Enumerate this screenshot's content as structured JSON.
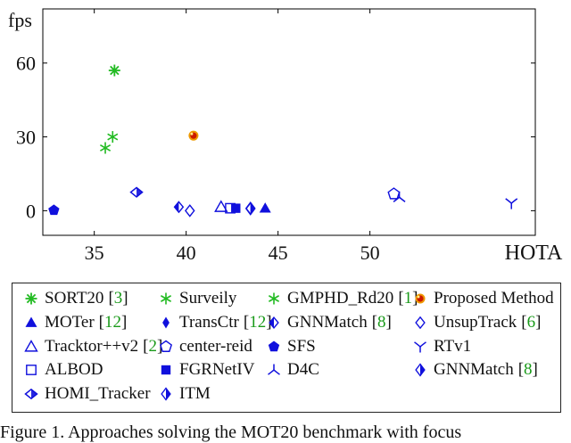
{
  "chart_data": {
    "type": "scatter",
    "title": "",
    "xlabel": "HOTA",
    "ylabel": "fps",
    "xlim": [
      32.2,
      59.0
    ],
    "ylim": [
      -10,
      82
    ],
    "xticks": [
      35,
      40,
      45,
      50
    ],
    "yticks": [
      0,
      30,
      60
    ],
    "series": [
      {
        "name": "SORT20",
        "cite": "3",
        "marker": "asterisk",
        "color": "#22bb22",
        "points": [
          [
            36.1,
            57
          ]
        ]
      },
      {
        "name": "Surveily",
        "cite": "",
        "marker": "star",
        "color": "#22bb22",
        "points": [
          [
            35.6,
            25.5
          ],
          [
            36.0,
            30.0
          ]
        ]
      },
      {
        "name": "GMPHD_Rd20",
        "cite": "1",
        "marker": "star",
        "color": "#22bb22",
        "points": []
      },
      {
        "name": "Proposed Method",
        "cite": "",
        "marker": "ball",
        "color": "#cc2200",
        "points": [
          [
            40.4,
            30.5
          ]
        ]
      },
      {
        "name": "MOTer",
        "cite": "12",
        "marker": "triangle",
        "color": "#1010dd",
        "points": [
          [
            44.3,
            1
          ]
        ]
      },
      {
        "name": "TransCtr",
        "cite": "12",
        "marker": "diamond",
        "color": "#1010dd",
        "points": []
      },
      {
        "name": "GNNMatch",
        "cite": "8",
        "marker": "diamond-open-half",
        "color": "#1010dd",
        "points": [
          [
            39.6,
            1.5
          ]
        ]
      },
      {
        "name": "UnsupTrack",
        "cite": "6",
        "marker": "diamond-open",
        "color": "#1010dd",
        "points": [
          [
            40.2,
            0
          ]
        ]
      },
      {
        "name": "Tracktor++v2",
        "cite": "2",
        "marker": "triangle-open",
        "color": "#1010dd",
        "points": [
          [
            41.9,
            1.5
          ]
        ]
      },
      {
        "name": "center-reid",
        "cite": "",
        "marker": "pentagon-open",
        "color": "#1010dd",
        "points": [
          [
            51.3,
            6.8
          ]
        ]
      },
      {
        "name": "SFS",
        "cite": "",
        "marker": "pentagon",
        "color": "#1010dd",
        "points": [
          [
            32.8,
            0.2
          ]
        ]
      },
      {
        "name": "RTv1",
        "cite": "",
        "marker": "tri-down",
        "color": "#1010dd",
        "points": [
          [
            57.7,
            3
          ]
        ]
      },
      {
        "name": "ALBOD",
        "cite": "",
        "marker": "square-open",
        "color": "#1010dd",
        "points": [
          [
            42.4,
            1
          ]
        ]
      },
      {
        "name": "FGRNetIV",
        "cite": "",
        "marker": "square",
        "color": "#1010dd",
        "points": [
          [
            42.7,
            1
          ]
        ]
      },
      {
        "name": "D4C",
        "cite": "",
        "marker": "tri-up",
        "color": "#1010dd",
        "points": [
          [
            51.6,
            5.5
          ]
        ]
      },
      {
        "name": "GNNMatch",
        "cite": "8",
        "marker": "diamond-half",
        "color": "#1010dd",
        "points": [
          [
            43.5,
            1
          ]
        ]
      },
      {
        "name": "HOMI_Tracker",
        "cite": "",
        "marker": "diamond-open-wide",
        "color": "#1010dd",
        "points": [
          [
            37.3,
            7.5
          ]
        ]
      },
      {
        "name": "ITM",
        "cite": "",
        "marker": "diamond-half-b",
        "color": "#1010dd",
        "points": [
          [
            43.5,
            0.8
          ]
        ]
      }
    ]
  },
  "caption": "Figure 1. Approaches solving the MOT20 benchmark with focus"
}
